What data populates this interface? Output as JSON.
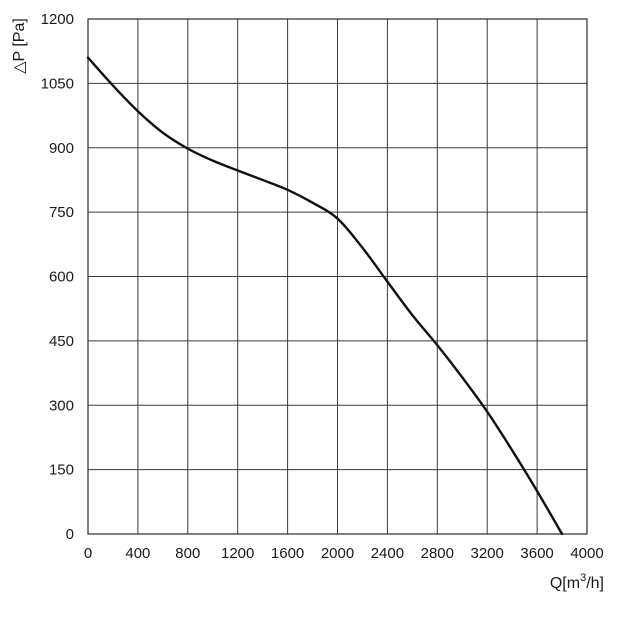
{
  "chart_data": {
    "type": "line",
    "title": "",
    "ylabel": "△P [Pa]",
    "xlabel": {
      "base": "Q[m",
      "sup": "3",
      "tail": "/h]"
    },
    "xlim": [
      0,
      4000
    ],
    "ylim": [
      0,
      1200
    ],
    "x_ticks": [
      0,
      400,
      800,
      1200,
      1600,
      2000,
      2400,
      2800,
      3200,
      3600,
      4000
    ],
    "y_ticks": [
      0,
      150,
      300,
      450,
      600,
      750,
      900,
      1050,
      1200
    ],
    "grid": true,
    "colors": {
      "curve": "#111111",
      "grid": "#3a3a3a"
    },
    "series": [
      {
        "x": [
          0,
          200,
          400,
          600,
          800,
          1000,
          1200,
          1400,
          1600,
          1800,
          2000,
          2200,
          2400,
          2600,
          2800,
          3000,
          3200,
          3400,
          3600,
          3800
        ],
        "y": [
          1110,
          1045,
          985,
          935,
          898,
          870,
          847,
          825,
          802,
          772,
          735,
          667,
          588,
          510,
          440,
          365,
          285,
          195,
          100,
          0
        ]
      }
    ]
  }
}
